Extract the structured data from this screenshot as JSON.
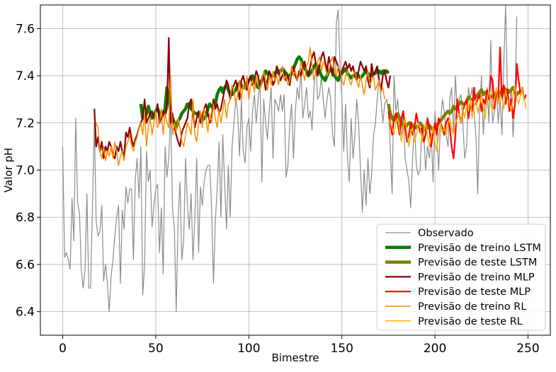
{
  "chart_data": {
    "type": "line",
    "title": "",
    "xlabel": "Bimestre",
    "ylabel": "Valor pH",
    "xlim": [
      -12,
      262
    ],
    "ylim": [
      6.3,
      7.7
    ],
    "xticks": [
      0,
      50,
      100,
      150,
      200,
      250
    ],
    "yticks": [
      6.4,
      6.6,
      6.8,
      7.0,
      7.2,
      7.4,
      7.6
    ],
    "xtick_labels": [
      "0",
      "50",
      "100",
      "150",
      "200",
      "250"
    ],
    "ytick_labels": [
      "6.4",
      "6.6",
      "6.8",
      "7.0",
      "7.2",
      "7.4",
      "7.6"
    ],
    "grid": true,
    "legend_position": "lower-right",
    "series": [
      {
        "name": "Observado",
        "color": "#8c8c8c",
        "width": 1.2,
        "x_start": 0,
        "values": [
          7.1,
          6.63,
          6.65,
          6.62,
          6.58,
          6.88,
          6.7,
          7.22,
          6.86,
          6.82,
          6.58,
          6.5,
          6.58,
          6.9,
          6.5,
          6.5,
          6.85,
          7.2,
          6.78,
          6.72,
          6.74,
          6.85,
          6.53,
          6.6,
          6.52,
          6.4,
          6.55,
          6.62,
          6.72,
          6.8,
          6.85,
          6.52,
          6.83,
          6.75,
          6.93,
          6.86,
          6.92,
          6.92,
          6.62,
          6.96,
          7.05,
          6.88,
          7.1,
          6.47,
          6.6,
          7.08,
          6.95,
          7.0,
          6.76,
          6.85,
          6.92,
          6.94,
          6.65,
          6.84,
          6.56,
          7.1,
          6.97,
          7.05,
          7.25,
          6.84,
          6.75,
          6.4,
          6.8,
          6.95,
          6.62,
          6.7,
          7.05,
          6.85,
          6.75,
          6.9,
          6.62,
          6.8,
          7.05,
          6.65,
          6.93,
          6.85,
          6.95,
          7.0,
          7.02,
          7.02,
          6.84,
          6.52,
          6.78,
          6.92,
          7.12,
          6.8,
          7.15,
          6.95,
          6.75,
          7.02,
          6.8,
          7.1,
          7.2,
          7.3,
          7.25,
          7.06,
          7.3,
          7.08,
          7.03,
          7.18,
          7.22,
          7.08,
          7.25,
          7.32,
          7.2,
          7.3,
          7.38,
          6.95,
          7.3,
          7.2,
          7.13,
          7.25,
          7.35,
          7.05,
          7.3,
          7.28,
          7.25,
          7.32,
          7.25,
          7.32,
          6.97,
          7.02,
          7.2,
          7.28,
          7.05,
          7.25,
          7.35,
          7.3,
          7.43,
          7.22,
          7.28,
          7.35,
          7.22,
          7.25,
          7.17,
          7.35,
          7.45,
          7.3,
          7.32,
          7.4,
          7.3,
          7.22,
          7.3,
          7.35,
          7.3,
          7.15,
          7.1,
          7.62,
          7.68,
          7.45,
          7.3,
          7.08,
          7.28,
          7.05,
          6.95,
          7.22,
          7.05,
          7.15,
          7.3,
          7.2,
          7.0,
          6.82,
          7.0,
          6.85,
          7.05,
          6.9,
          6.98,
          7.15,
          7.2,
          7.3,
          7.4,
          7.3,
          7.2,
          7.28,
          7.3,
          7.25,
          7.1,
          6.9,
          7.4,
          7.25,
          7.3,
          7.18,
          7.15,
          7.25,
          7.05,
          7.0,
          6.95,
          6.84,
          7.05,
          7.2,
          7.02,
          6.98,
          7.0,
          7.2,
          7.15,
          7.0,
          7.1,
          7.05,
          7.15,
          6.95,
          7.25,
          7.15,
          7.0,
          7.2,
          7.3,
          7.25,
          7.15,
          7.1,
          7.3,
          7.35,
          7.15,
          7.4,
          7.25,
          7.3,
          7.32,
          7.2,
          7.05,
          7.1,
          7.35,
          7.3,
          7.35,
          7.25,
          7.15,
          6.9,
          7.25,
          7.4,
          7.15,
          7.3,
          7.35,
          7.2,
          7.55,
          7.2,
          7.25,
          7.35,
          7.2,
          7.3,
          7.15,
          7.45,
          7.7,
          7.3,
          7.25,
          7.35,
          7.14,
          7.3,
          7.65
        ]
      },
      {
        "name": "Previsão de treino LSTM",
        "color": "#0a7d00",
        "width": 4.5,
        "x_start": 42,
        "values": [
          7.28,
          7.22,
          7.22,
          7.24,
          7.27,
          7.24,
          7.22,
          7.23,
          7.25,
          7.26,
          7.24,
          7.22,
          7.24,
          7.26,
          7.35,
          7.3,
          7.25,
          7.22,
          7.2,
          7.18,
          7.21,
          7.22,
          7.24,
          7.25,
          7.26,
          7.28,
          7.28,
          7.26,
          7.25,
          7.24,
          7.24,
          7.23,
          7.22,
          7.21,
          7.22,
          7.23,
          7.26,
          7.28,
          7.27,
          7.26,
          7.28,
          7.32,
          7.34,
          7.35,
          7.33,
          7.35,
          7.36,
          7.34,
          7.32,
          7.32,
          7.33,
          7.34,
          7.36,
          7.37,
          7.36,
          7.35,
          7.35,
          7.36,
          7.38,
          7.39,
          7.4,
          7.38,
          7.36,
          7.35,
          7.36,
          7.38,
          7.4,
          7.42,
          7.41,
          7.4,
          7.4,
          7.4,
          7.41,
          7.42,
          7.41,
          7.42,
          7.43,
          7.42,
          7.41,
          7.4,
          7.4,
          7.41,
          7.43,
          7.45,
          7.47,
          7.48,
          7.47,
          7.45,
          7.43,
          7.42,
          7.4,
          7.41,
          7.42,
          7.44,
          7.45,
          7.44,
          7.42,
          7.4,
          7.39,
          7.38,
          7.4,
          7.42,
          7.43,
          7.41,
          7.4,
          7.39,
          7.38,
          7.4,
          7.41,
          7.42,
          7.43,
          7.41,
          7.4,
          7.39,
          7.4,
          7.4,
          7.41,
          7.4,
          7.39,
          7.4,
          7.41,
          7.42,
          7.41,
          7.4,
          7.4,
          7.41,
          7.41,
          7.42,
          7.42,
          7.41,
          7.42,
          7.42,
          7.42,
          7.41
        ]
      },
      {
        "name": "Previsão de teste LSTM",
        "color": "#808000",
        "width": 4.5,
        "x_start": 175,
        "values": [
          7.28,
          7.24,
          7.22,
          7.21,
          7.22,
          7.24,
          7.22,
          7.2,
          7.19,
          7.18,
          7.19,
          7.2,
          7.2,
          7.19,
          7.18,
          7.18,
          7.19,
          7.2,
          7.19,
          7.18,
          7.17,
          7.18,
          7.19,
          7.18,
          7.17,
          7.18,
          7.19,
          7.2,
          7.21,
          7.22,
          7.23,
          7.24,
          7.25,
          7.24,
          7.25,
          7.27,
          7.26,
          7.27,
          7.28,
          7.29,
          7.28,
          7.28,
          7.29,
          7.31,
          7.3,
          7.3,
          7.3,
          7.31,
          7.32,
          7.33,
          7.34,
          7.32,
          7.33,
          7.33,
          7.32,
          7.31,
          7.31,
          7.32,
          7.33,
          7.31,
          7.32,
          7.34,
          7.35,
          7.34,
          7.34,
          7.33,
          7.34,
          7.35,
          7.33,
          7.32,
          7.33,
          7.33
        ]
      },
      {
        "name": "Previsão de treino MLP",
        "color": "#8b0000",
        "width": 2.2,
        "x_start": 17,
        "values": [
          7.26,
          7.1,
          7.14,
          7.08,
          7.12,
          7.05,
          7.1,
          7.08,
          7.12,
          7.1,
          7.06,
          7.05,
          7.1,
          7.08,
          7.12,
          7.08,
          7.06,
          7.16,
          7.14,
          7.18,
          7.13,
          7.1,
          7.13,
          7.15,
          7.18,
          7.2,
          7.22,
          7.3,
          7.2,
          7.22,
          7.24,
          7.25,
          7.22,
          7.24,
          7.28,
          7.2,
          7.22,
          7.25,
          7.23,
          7.26,
          7.56,
          7.2,
          7.24,
          7.18,
          7.15,
          7.12,
          7.1,
          7.16,
          7.18,
          7.2,
          7.22,
          7.28,
          7.3,
          7.24,
          7.18,
          7.22,
          7.25,
          7.2,
          7.23,
          7.26,
          7.28,
          7.24,
          7.2,
          7.22,
          7.3,
          7.26,
          7.28,
          7.24,
          7.26,
          7.3,
          7.34,
          7.38,
          7.36,
          7.3,
          7.34,
          7.36,
          7.38,
          7.35,
          7.3,
          7.38,
          7.4,
          7.36,
          7.34,
          7.38,
          7.4,
          7.36,
          7.38,
          7.42,
          7.4,
          7.35,
          7.38,
          7.4,
          7.34,
          7.38,
          7.42,
          7.4,
          7.36,
          7.38,
          7.44,
          7.42,
          7.38,
          7.4,
          7.42,
          7.38,
          7.4,
          7.36,
          7.42,
          7.44,
          7.4,
          7.38,
          7.42,
          7.4,
          7.44,
          7.46,
          7.42,
          7.4,
          7.44,
          7.48,
          7.5,
          7.45,
          7.4,
          7.44,
          7.48,
          7.5,
          7.46,
          7.42,
          7.48,
          7.44,
          7.4,
          7.48,
          7.46,
          7.44,
          7.4,
          7.42,
          7.44,
          7.46,
          7.43,
          7.45,
          7.42,
          7.44,
          7.4,
          7.38,
          7.42,
          7.46,
          7.44,
          7.42,
          7.44,
          7.38,
          7.35,
          7.45,
          7.4,
          7.42,
          7.44,
          7.38,
          7.34,
          7.4,
          7.42,
          7.38,
          7.35,
          7.4
        ]
      },
      {
        "name": "Previsão de teste MLP",
        "color": "#ff0000",
        "width": 2.2,
        "x_start": 175,
        "values": [
          7.25,
          7.2,
          7.15,
          7.22,
          7.24,
          7.2,
          7.15,
          7.22,
          7.25,
          7.18,
          7.12,
          7.15,
          7.2,
          7.15,
          7.18,
          7.24,
          7.2,
          7.16,
          7.18,
          7.12,
          7.15,
          7.22,
          7.18,
          7.1,
          7.16,
          7.2,
          7.15,
          7.22,
          7.2,
          7.18,
          7.15,
          7.2,
          7.22,
          7.18,
          7.1,
          7.05,
          7.15,
          7.3,
          7.24,
          7.2,
          7.25,
          7.28,
          7.3,
          7.22,
          7.28,
          7.25,
          7.35,
          7.28,
          7.3,
          7.32,
          7.25,
          7.3,
          7.28,
          7.34,
          7.3,
          7.4,
          7.38,
          7.26,
          7.34,
          7.3,
          7.52,
          7.3,
          7.36,
          7.28,
          7.34,
          7.25,
          7.3,
          7.22,
          7.28,
          7.45,
          7.38,
          7.32,
          7.35,
          7.3,
          7.32
        ]
      },
      {
        "name": "Previsão de treino RL",
        "color": "#ff8c00",
        "width": 1.5,
        "x_start": 18,
        "values": [
          7.2,
          7.18,
          7.08,
          7.05,
          7.1,
          7.04,
          7.08,
          7.06,
          7.1,
          7.05,
          7.12,
          7.08,
          7.02,
          7.06,
          7.08,
          7.04,
          7.1,
          7.12,
          7.15,
          7.1,
          7.08,
          7.12,
          7.14,
          7.18,
          7.2,
          7.15,
          7.24,
          7.1,
          7.18,
          7.22,
          7.15,
          7.2,
          7.25,
          7.18,
          7.2,
          7.26,
          7.15,
          7.24,
          7.2,
          7.18,
          7.4,
          7.15,
          7.2,
          7.16,
          7.22,
          7.18,
          7.12,
          7.1,
          7.15,
          7.2,
          7.18,
          7.15,
          7.3,
          7.15,
          7.12,
          7.2,
          7.25,
          7.18,
          7.26,
          7.22,
          7.16,
          7.24,
          7.2,
          7.28,
          7.22,
          7.18,
          7.26,
          7.2,
          7.25,
          7.3,
          7.22,
          7.28,
          7.3,
          7.36,
          7.34,
          7.28,
          7.32,
          7.38,
          7.3,
          7.36,
          7.34,
          7.4,
          7.3,
          7.36,
          7.38,
          7.33,
          7.4,
          7.36,
          7.34,
          7.38,
          7.42,
          7.38,
          7.34,
          7.4,
          7.36,
          7.42,
          7.38,
          7.4,
          7.36,
          7.42,
          7.44,
          7.38,
          7.4,
          7.36,
          7.38,
          7.44,
          7.4,
          7.42,
          7.38,
          7.4,
          7.46,
          7.42,
          7.38,
          7.44,
          7.46,
          7.52,
          7.44,
          7.38,
          7.42,
          7.46,
          7.48,
          7.42,
          7.46,
          7.44,
          7.4,
          7.42,
          7.46,
          7.48,
          7.42,
          7.4,
          7.44,
          7.42,
          7.38,
          7.36,
          7.4,
          7.42,
          7.38,
          7.36,
          7.4,
          7.42,
          7.38,
          7.35,
          7.4,
          7.36,
          7.32,
          7.38,
          7.42,
          7.36,
          7.38,
          7.4,
          7.34,
          7.36,
          7.38,
          7.33,
          7.35,
          7.3
        ]
      },
      {
        "name": "Previsão de teste RL",
        "color": "#ffb000",
        "width": 1.5,
        "x_start": 175,
        "values": [
          7.22,
          7.2,
          7.18,
          7.15,
          7.2,
          7.22,
          7.17,
          7.12,
          7.18,
          7.22,
          7.15,
          7.1,
          7.16,
          7.18,
          7.12,
          7.15,
          7.2,
          7.18,
          7.12,
          7.16,
          7.2,
          7.15,
          7.1,
          7.14,
          7.18,
          7.12,
          7.08,
          7.15,
          7.2,
          7.16,
          7.18,
          7.15,
          7.2,
          7.22,
          7.18,
          7.15,
          7.2,
          7.22,
          7.24,
          7.2,
          7.26,
          7.22,
          7.28,
          7.25,
          7.3,
          7.22,
          7.27,
          7.3,
          7.24,
          7.28,
          7.32,
          7.26,
          7.22,
          7.3,
          7.34,
          7.28,
          7.25,
          7.3,
          7.35,
          7.28,
          7.32,
          7.3,
          7.26,
          7.34,
          7.3,
          7.28,
          7.25,
          7.32,
          7.36,
          7.3,
          7.28,
          7.32,
          7.35,
          7.3,
          7.26
        ]
      }
    ]
  }
}
